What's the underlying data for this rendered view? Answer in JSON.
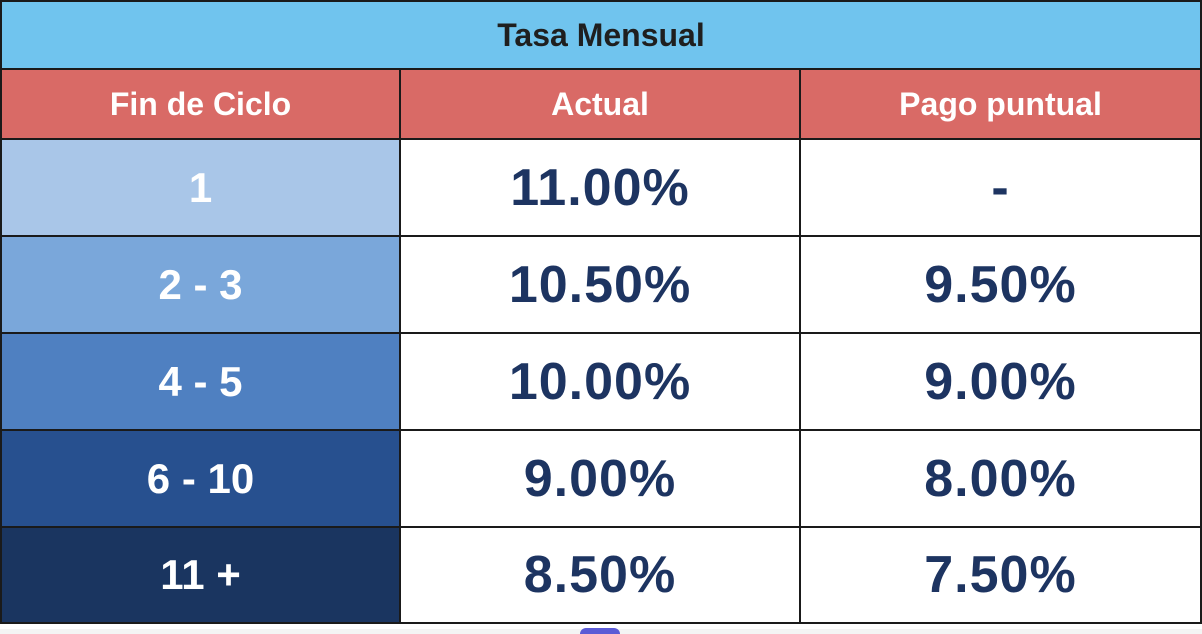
{
  "title": "Tasa Mensual",
  "headers": {
    "cycle": "Fin de Ciclo",
    "actual": "Actual",
    "punctual": "Pago puntual"
  },
  "rows": [
    {
      "cycle": "1",
      "actual": "11.00%",
      "punctual": "-",
      "color": "#a9c6e8"
    },
    {
      "cycle": "2 - 3",
      "actual": "10.50%",
      "punctual": "9.50%",
      "color": "#7aa7da"
    },
    {
      "cycle": "4 - 5",
      "actual": "10.00%",
      "punctual": "9.00%",
      "color": "#4f80c1"
    },
    {
      "cycle": "6 - 10",
      "actual": "9.00%",
      "punctual": "8.00%",
      "color": "#27508f"
    },
    {
      "cycle": "11 +",
      "actual": "8.50%",
      "punctual": "7.50%",
      "color": "#1a3560"
    }
  ],
  "colors": {
    "title_bg": "#70c4ee",
    "header_bg": "#d96a66",
    "rate_text": "#1d3461"
  }
}
